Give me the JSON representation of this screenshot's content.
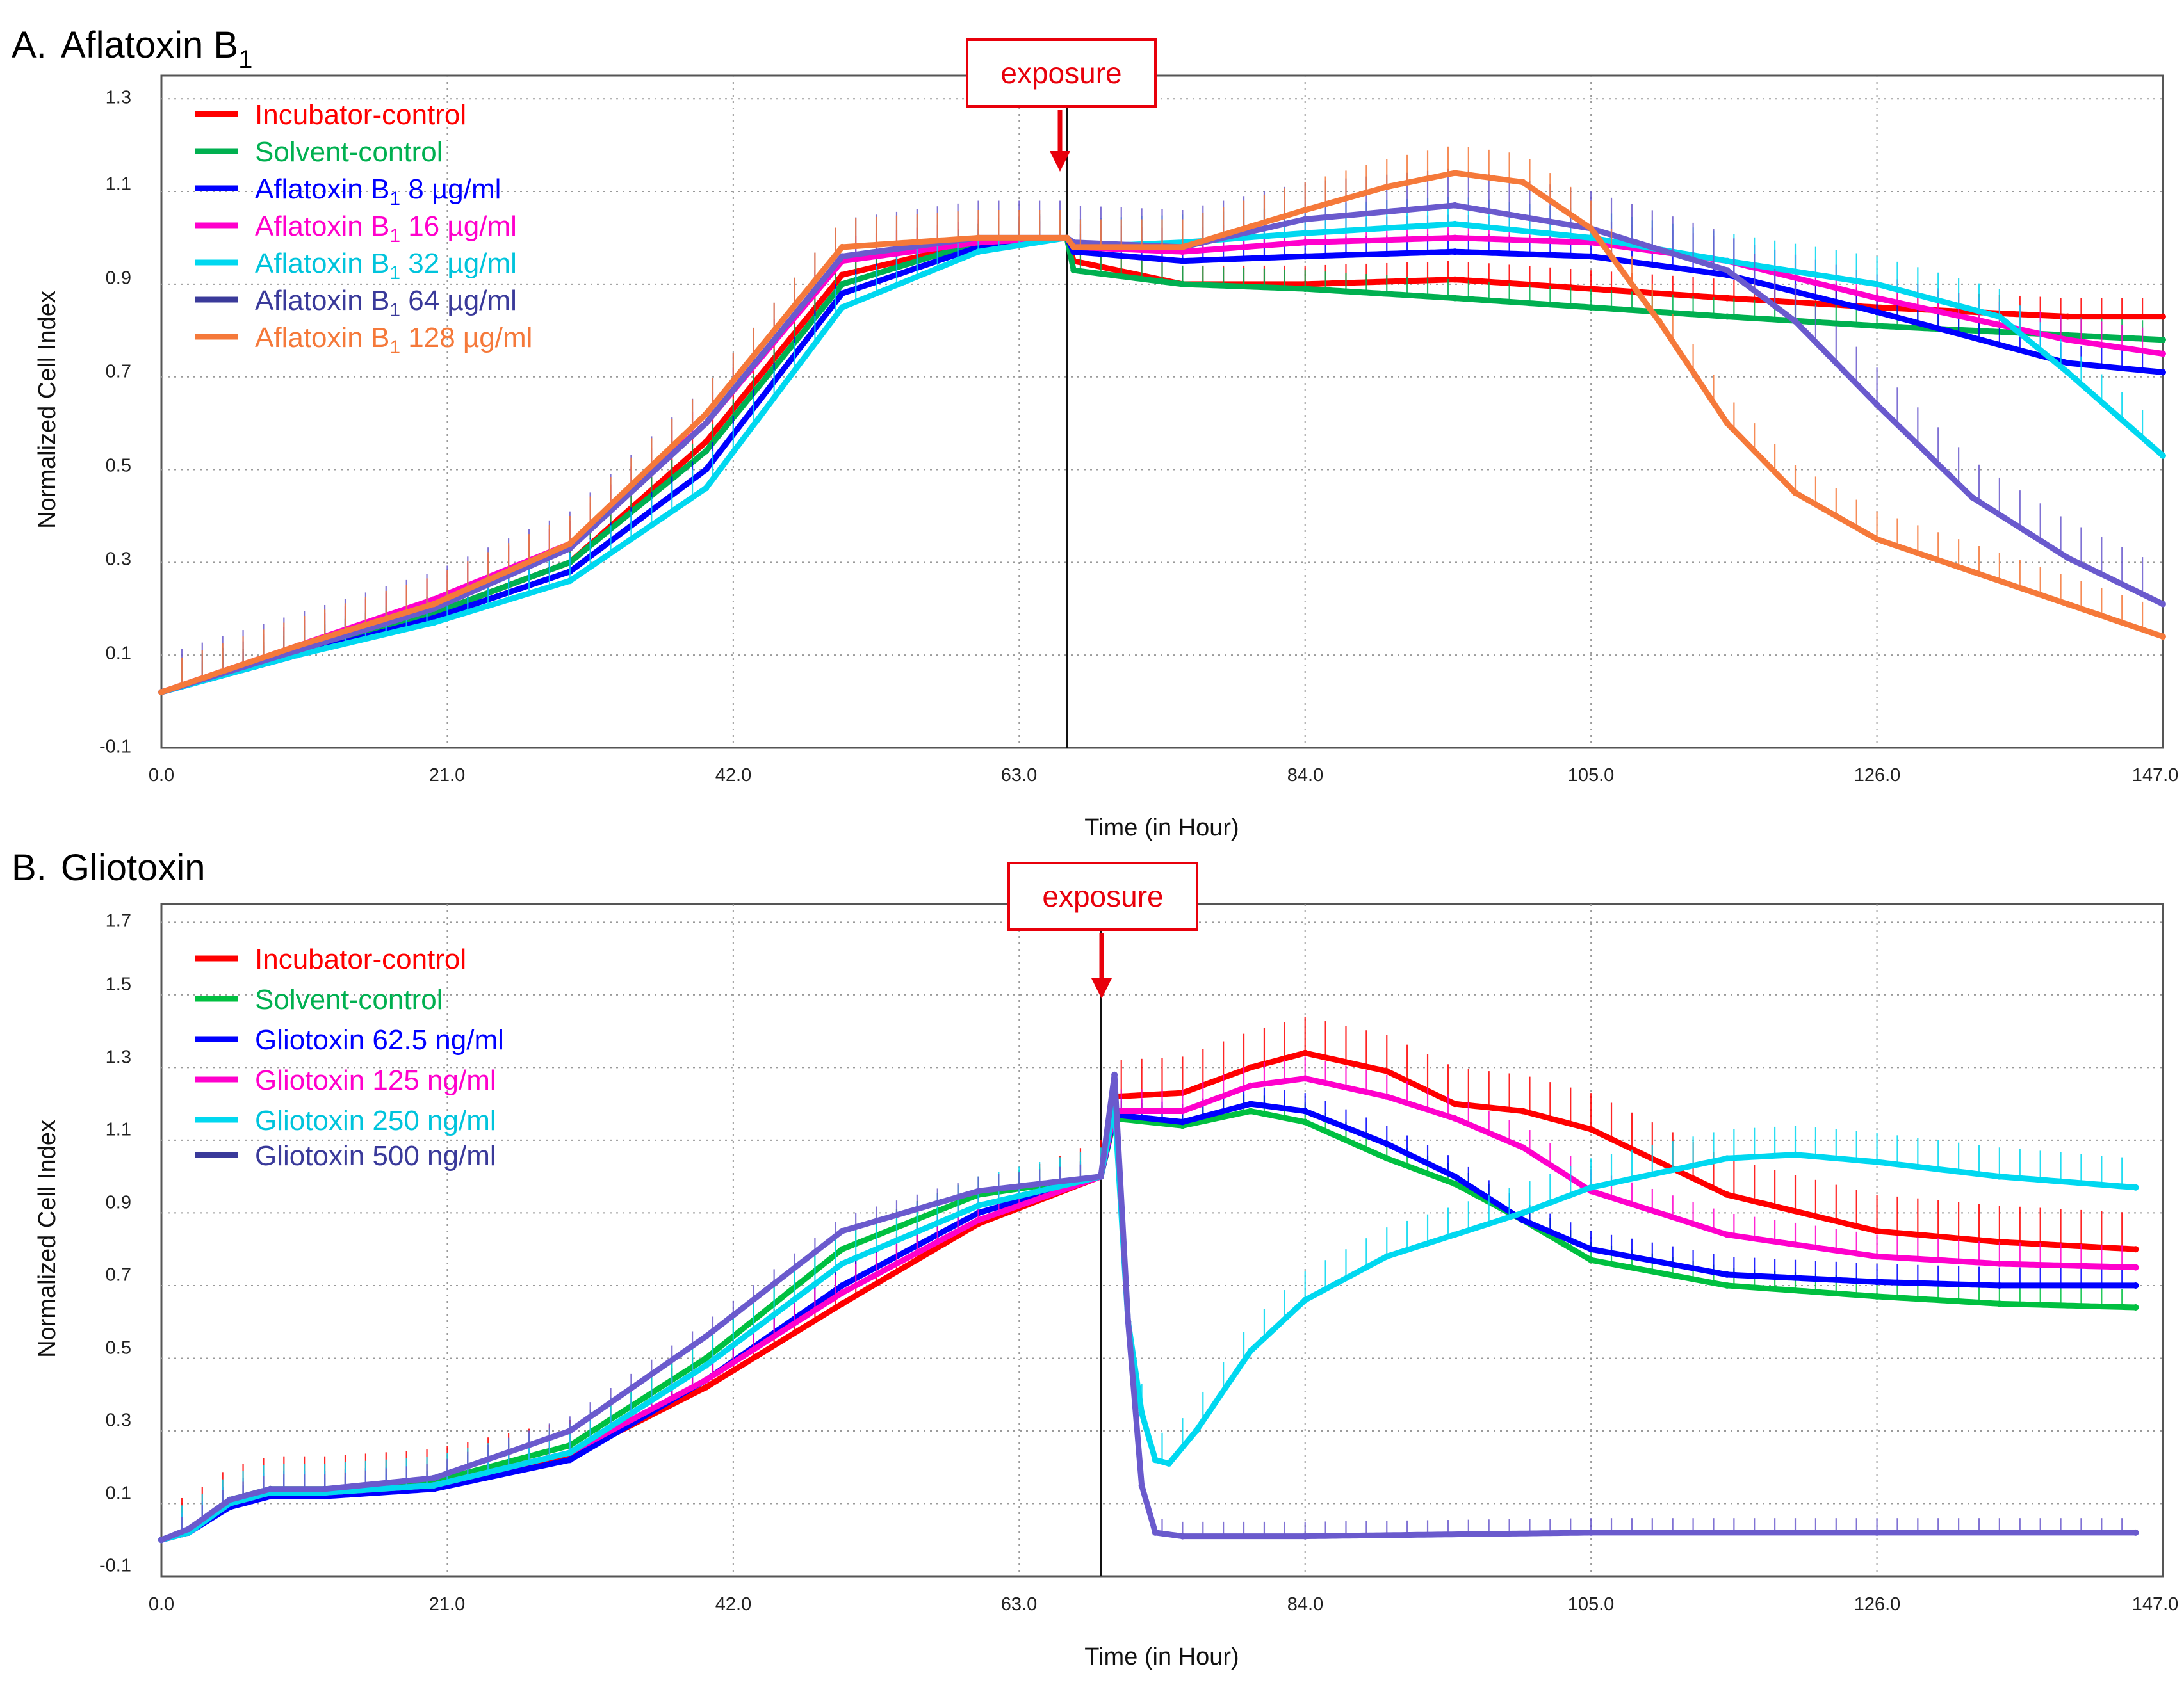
{
  "chart_data": [
    {
      "panel_label": "A.",
      "title": "Aflatoxin B",
      "title_subscript": "1",
      "type": "line",
      "xlabel": "Time (in Hour)",
      "ylabel": "Normalized Cell Index",
      "xlim": [
        0,
        147
      ],
      "ylim": [
        -0.1,
        1.35
      ],
      "x_ticks": [
        "0.0",
        "21.0",
        "42.0",
        "63.0",
        "84.0",
        "105.0",
        "126.0",
        "147.0"
      ],
      "y_ticks": [
        "-0.1",
        "0.1",
        "0.3",
        "0.5",
        "0.7",
        "0.9",
        "1.1",
        "1.3"
      ],
      "grid": true,
      "legend_position": "top-left",
      "exposure": {
        "label": "exposure",
        "x": 66.5
      },
      "series": [
        {
          "name": "Incubator-control",
          "name_main": "Incubator-control",
          "name_sub": "",
          "name_suffix": "",
          "color": "#ff0000",
          "x": [
            0,
            10,
            20,
            30,
            40,
            50,
            60,
            66.5,
            67,
            75,
            84,
            95,
            105,
            115,
            126,
            140,
            147
          ],
          "y": [
            0.02,
            0.11,
            0.19,
            0.3,
            0.56,
            0.92,
            0.99,
            1.0,
            0.95,
            0.9,
            0.9,
            0.91,
            0.89,
            0.87,
            0.85,
            0.83,
            0.83
          ],
          "err": 0.04
        },
        {
          "name": "Solvent-control",
          "name_main": "Solvent-control",
          "name_sub": "",
          "name_suffix": "",
          "color": "#00b050",
          "x": [
            0,
            10,
            20,
            30,
            40,
            50,
            60,
            66.5,
            67,
            75,
            84,
            95,
            105,
            115,
            126,
            140,
            147
          ],
          "y": [
            0.02,
            0.11,
            0.19,
            0.3,
            0.54,
            0.9,
            0.99,
            1.0,
            0.93,
            0.9,
            0.89,
            0.87,
            0.85,
            0.83,
            0.81,
            0.79,
            0.78
          ],
          "err": 0.04
        },
        {
          "name": "Aflatoxin B1 8 µg/ml",
          "name_main": "Aflatoxin B",
          "name_sub": "1",
          "name_suffix": " 8 µg/ml",
          "color": "#0000ff",
          "x": [
            0,
            10,
            20,
            30,
            40,
            50,
            60,
            66.5,
            67,
            75,
            84,
            95,
            105,
            115,
            126,
            140,
            147
          ],
          "y": [
            0.02,
            0.1,
            0.18,
            0.28,
            0.5,
            0.88,
            0.98,
            1.0,
            0.97,
            0.95,
            0.96,
            0.97,
            0.96,
            0.92,
            0.84,
            0.73,
            0.71
          ],
          "err": 0.04
        },
        {
          "name": "Aflatoxin B1 16 µg/ml",
          "name_main": "Aflatoxin B",
          "name_sub": "1",
          "name_suffix": " 16 µg/ml",
          "color": "#ff00cc",
          "x": [
            0,
            10,
            20,
            30,
            40,
            50,
            60,
            66.5,
            67,
            75,
            84,
            95,
            105,
            115,
            126,
            140,
            147
          ],
          "y": [
            0.02,
            0.12,
            0.22,
            0.34,
            0.6,
            0.95,
            0.99,
            1.0,
            0.98,
            0.97,
            0.99,
            1.0,
            0.99,
            0.95,
            0.87,
            0.78,
            0.75
          ],
          "err": 0.05
        },
        {
          "name": "Aflatoxin B1 32 µg/ml",
          "name_main": "Aflatoxin B",
          "name_sub": "1",
          "name_suffix": " 32 µg/ml",
          "color": "#00d8f0",
          "x": [
            0,
            10,
            20,
            30,
            40,
            50,
            60,
            66.5,
            67,
            75,
            84,
            95,
            105,
            115,
            126,
            135,
            140,
            147
          ],
          "y": [
            0.02,
            0.1,
            0.17,
            0.26,
            0.46,
            0.85,
            0.97,
            1.0,
            0.98,
            0.99,
            1.01,
            1.03,
            1.0,
            0.95,
            0.9,
            0.83,
            0.71,
            0.53
          ],
          "err": 0.06
        },
        {
          "name": "Aflatoxin B1 64 µg/ml",
          "name_main": "Aflatoxin B",
          "name_sub": "1",
          "name_suffix": " 64 µg/ml",
          "color": "#6a5acd",
          "x": [
            0,
            10,
            20,
            30,
            40,
            50,
            60,
            66.5,
            67,
            75,
            84,
            95,
            105,
            115,
            120,
            126,
            133,
            140,
            147
          ],
          "y": [
            0.02,
            0.11,
            0.2,
            0.33,
            0.6,
            0.96,
            1.0,
            1.0,
            0.99,
            0.98,
            1.04,
            1.07,
            1.02,
            0.93,
            0.82,
            0.64,
            0.44,
            0.31,
            0.21
          ],
          "err": 0.08
        },
        {
          "name": "Aflatoxin B1 128 µg/ml",
          "name_main": "Aflatoxin B",
          "name_sub": "1",
          "name_suffix": " 128 µg/ml",
          "color": "#f5793a",
          "x": [
            0,
            10,
            20,
            30,
            40,
            50,
            60,
            66.5,
            67,
            75,
            84,
            90,
            95,
            100,
            105,
            110,
            115,
            120,
            126,
            133,
            140,
            147
          ],
          "y": [
            0.02,
            0.12,
            0.21,
            0.34,
            0.62,
            0.98,
            1.0,
            1.0,
            0.98,
            0.98,
            1.06,
            1.11,
            1.14,
            1.12,
            1.02,
            0.82,
            0.6,
            0.45,
            0.35,
            0.28,
            0.21,
            0.14
          ],
          "err": 0.06
        }
      ]
    },
    {
      "panel_label": "B.",
      "title": "Gliotoxin",
      "title_subscript": "",
      "type": "line",
      "xlabel": "Time (in Hour)",
      "ylabel": "Normalized Cell Index",
      "xlim": [
        0,
        147
      ],
      "ylim": [
        -0.1,
        1.75
      ],
      "x_ticks": [
        "0.0",
        "21.0",
        "42.0",
        "63.0",
        "84.0",
        "105.0",
        "126.0",
        "147.0"
      ],
      "y_ticks": [
        "-0.1",
        "0.1",
        "0.3",
        "0.5",
        "0.7",
        "0.9",
        "1.1",
        "1.3",
        "1.5",
        "1.7"
      ],
      "grid": true,
      "legend_position": "top-left",
      "exposure": {
        "label": "exposure",
        "x": 69
      },
      "series": [
        {
          "name": "Incubator-control",
          "name_main": "Incubator-control",
          "name_sub": "",
          "name_suffix": "",
          "color": "#ff0000",
          "x": [
            0,
            2,
            5,
            8,
            12,
            20,
            30,
            40,
            50,
            60,
            69,
            70,
            75,
            80,
            84,
            90,
            95,
            100,
            105,
            115,
            126,
            135,
            145
          ],
          "y": [
            0.0,
            0.02,
            0.1,
            0.13,
            0.13,
            0.15,
            0.23,
            0.42,
            0.65,
            0.87,
            1.0,
            1.22,
            1.23,
            1.3,
            1.34,
            1.29,
            1.2,
            1.18,
            1.13,
            0.95,
            0.85,
            0.82,
            0.8
          ],
          "err": 0.1
        },
        {
          "name": "Solvent-control",
          "name_main": "Solvent-control",
          "name_sub": "",
          "name_suffix": "",
          "color": "#00c040",
          "x": [
            0,
            2,
            5,
            8,
            12,
            20,
            30,
            40,
            50,
            60,
            69,
            70,
            75,
            80,
            84,
            90,
            95,
            100,
            105,
            115,
            126,
            135,
            145
          ],
          "y": [
            0.0,
            0.02,
            0.11,
            0.14,
            0.14,
            0.16,
            0.26,
            0.5,
            0.8,
            0.95,
            1.0,
            1.16,
            1.14,
            1.18,
            1.15,
            1.05,
            0.98,
            0.88,
            0.77,
            0.7,
            0.67,
            0.65,
            0.64
          ],
          "err": 0.05
        },
        {
          "name": "Gliotoxin 62.5 ng/ml",
          "name_main": "Gliotoxin 62.5 ng/ml",
          "name_sub": "",
          "name_suffix": "",
          "color": "#0000ff",
          "x": [
            0,
            2,
            5,
            8,
            12,
            20,
            30,
            40,
            50,
            60,
            69,
            70,
            75,
            80,
            84,
            90,
            95,
            100,
            105,
            115,
            126,
            135,
            145
          ],
          "y": [
            0.0,
            0.02,
            0.09,
            0.12,
            0.12,
            0.14,
            0.22,
            0.44,
            0.7,
            0.9,
            1.0,
            1.17,
            1.15,
            1.2,
            1.18,
            1.09,
            1.0,
            0.88,
            0.8,
            0.73,
            0.71,
            0.7,
            0.7
          ],
          "err": 0.05
        },
        {
          "name": "Gliotoxin 125 ng/ml",
          "name_main": "Gliotoxin 125 ng/ml",
          "name_sub": "",
          "name_suffix": "",
          "color": "#ff00cc",
          "x": [
            0,
            2,
            5,
            8,
            12,
            20,
            30,
            40,
            50,
            60,
            69,
            70,
            75,
            80,
            84,
            90,
            95,
            100,
            105,
            115,
            126,
            135,
            145
          ],
          "y": [
            0.0,
            0.02,
            0.1,
            0.13,
            0.13,
            0.15,
            0.24,
            0.44,
            0.68,
            0.88,
            1.0,
            1.18,
            1.18,
            1.25,
            1.27,
            1.22,
            1.16,
            1.08,
            0.96,
            0.84,
            0.78,
            0.76,
            0.75
          ],
          "err": 0.06
        },
        {
          "name": "Gliotoxin 250 ng/ml",
          "name_main": "Gliotoxin 250 ng/ml",
          "name_sub": "",
          "name_suffix": "",
          "color": "#00d8f0",
          "x": [
            0,
            2,
            5,
            8,
            12,
            20,
            30,
            40,
            50,
            60,
            69,
            70,
            71,
            72,
            73,
            74,
            76,
            80,
            84,
            90,
            95,
            100,
            105,
            115,
            120,
            126,
            135,
            145
          ],
          "y": [
            0.0,
            0.02,
            0.1,
            0.13,
            0.13,
            0.15,
            0.24,
            0.48,
            0.76,
            0.92,
            1.0,
            1.2,
            0.6,
            0.35,
            0.22,
            0.21,
            0.3,
            0.52,
            0.66,
            0.78,
            0.84,
            0.9,
            0.97,
            1.05,
            1.06,
            1.04,
            1.0,
            0.97
          ],
          "err": 0.08
        },
        {
          "name": "Gliotoxin 500 ng/ml",
          "name_main": "Gliotoxin 500 ng/ml",
          "name_sub": "",
          "name_suffix": "",
          "color": "#6a5acd",
          "x": [
            0,
            2,
            5,
            8,
            12,
            20,
            30,
            40,
            50,
            60,
            69,
            70,
            71,
            72,
            73,
            75,
            84,
            105,
            126,
            145
          ],
          "y": [
            0.0,
            0.03,
            0.11,
            0.14,
            0.14,
            0.17,
            0.3,
            0.56,
            0.85,
            0.96,
            1.0,
            1.28,
            0.6,
            0.15,
            0.02,
            0.01,
            0.01,
            0.02,
            0.02,
            0.02
          ],
          "err": 0.04
        }
      ]
    }
  ]
}
